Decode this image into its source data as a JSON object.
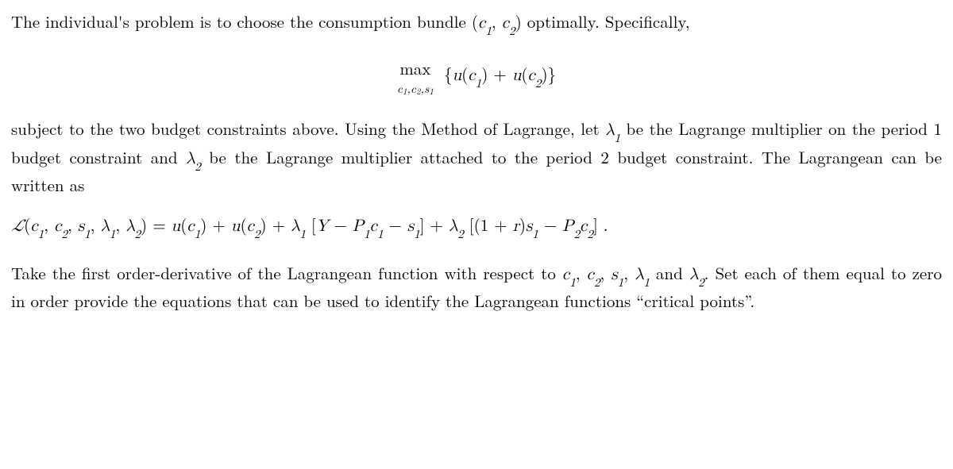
{
  "para1_a": "The individual's problem is to choose the consumption bundle ",
  "para1_b": "(",
  "para1_c1": "c",
  "para1_c1sub": "1",
  "para1_comma": ", ",
  "para1_c2": "c",
  "para1_c2sub": "2",
  "para1_d": ")",
  "para1_e": " optimally. Specifically,",
  "max_top": "max",
  "max_bot_a": "c",
  "max_bot_as": "1",
  "max_bot_b": ",c",
  "max_bot_bs": "2",
  "max_bot_c": ",s",
  "max_bot_cs": "1",
  "obj_open": "{",
  "obj_u": "u",
  "obj_lp": "(",
  "obj_c1": "c",
  "obj_c1s": "1",
  "obj_rp1": ")",
  "obj_plus": " + ",
  "obj_u2": "u",
  "obj_lp2": "(",
  "obj_c2": "c",
  "obj_c2s": "2",
  "obj_rp2": ")",
  "obj_close": "}",
  "para2_a": "subject to the two budget constraints above.  Using the Method of Lagrange, let ",
  "para2_lam1": "λ",
  "para2_lam1s": "1",
  "para2_b": " be the Lagrange multiplier on the period 1 budget constraint and ",
  "para2_lam2": "λ",
  "para2_lam2s": "2",
  "para2_c": " be the Lagrange multiplier attached to the period 2 budget constraint. The Lagrangean can be written as",
  "lag_L": "ℒ",
  "lag_open": "(",
  "lag_c1": "c",
  "lag_c1s": "1",
  "lag_cm1": ", ",
  "lag_c2": "c",
  "lag_c2s": "2",
  "lag_cm2": ", ",
  "lag_s1": "s",
  "lag_s1s": "1",
  "lag_cm3": ", ",
  "lag_l1": "λ",
  "lag_l1s": "1",
  "lag_cm4": ", ",
  "lag_l2": "λ",
  "lag_l2s": "2",
  "lag_close": ")",
  "lag_eq": " = ",
  "lag_u1": "u",
  "lag_u1lp": "(",
  "lag_u1c": "c",
  "lag_u1cs": "1",
  "lag_u1rp": ")",
  "lag_p1": " + ",
  "lag_u2": "u",
  "lag_u2lp": "(",
  "lag_u2c": "c",
  "lag_u2cs": "2",
  "lag_u2rp": ")",
  "lag_p2": " + ",
  "lag_la": "λ",
  "lag_las": "1",
  "lag_sp1": " ",
  "lag_br1o": "[",
  "lag_Y": "Y",
  "lag_m1": " − ",
  "lag_P1": "P",
  "lag_P1s": "1",
  "lag_cc1": "c",
  "lag_cc1s": "1",
  "lag_m2": " − ",
  "lag_ss1": "s",
  "lag_ss1s": "1",
  "lag_br1c": "]",
  "lag_p3": " + ",
  "lag_lb": "λ",
  "lag_lbs": "2",
  "lag_sp2": " ",
  "lag_br2o": "[",
  "lag_1r_open": "(",
  "lag_1r_one": "1",
  "lag_1r_plus": " + ",
  "lag_1r_r": "r",
  "lag_1r_close": ")",
  "lag_ss2": "s",
  "lag_ss2s": "1",
  "lag_m3": " − ",
  "lag_P2": "P",
  "lag_P2s": "2",
  "lag_cc2": "c",
  "lag_cc2s": "2",
  "lag_br2c": "]",
  "lag_period": " .",
  "para3_a": "Take the first order-derivative of the Lagrangean function with respect to ",
  "p3_c1": "c",
  "p3_c1s": "1",
  "p3_cm1": ", ",
  "p3_c2": "c",
  "p3_c2s": "2",
  "p3_cm2": ", ",
  "p3_s1": "s",
  "p3_s1s": "1",
  "p3_cm3": ", ",
  "p3_l1": "λ",
  "p3_l1s": "1",
  "p3_and": " and ",
  "p3_l2": "λ",
  "p3_l2s": "2",
  "para3_b": ". Set each of them equal to zero in order provide the equations that can be used to identify the Lagrangean functions “critical points”."
}
